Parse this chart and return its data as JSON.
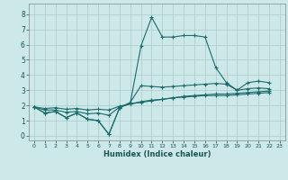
{
  "xlabel": "Humidex (Indice chaleur)",
  "xlim": [
    -0.5,
    23.5
  ],
  "ylim": [
    -0.3,
    8.7
  ],
  "xticks": [
    0,
    1,
    2,
    3,
    4,
    5,
    6,
    7,
    8,
    9,
    10,
    11,
    12,
    13,
    14,
    15,
    16,
    17,
    18,
    19,
    20,
    21,
    22,
    23
  ],
  "yticks": [
    0,
    1,
    2,
    3,
    4,
    5,
    6,
    7,
    8
  ],
  "background_color": "#cce8e8",
  "grid_color": "#aacccc",
  "line_color": "#1a6b6b",
  "series": [
    [
      1.9,
      1.5,
      1.6,
      1.2,
      1.5,
      1.1,
      1.0,
      0.1,
      1.85,
      2.15,
      5.9,
      7.8,
      6.5,
      6.5,
      6.6,
      6.6,
      6.5,
      4.5,
      3.5,
      3.0,
      3.5,
      3.6,
      3.5
    ],
    [
      1.9,
      1.5,
      1.6,
      1.2,
      1.5,
      1.1,
      1.0,
      0.1,
      1.85,
      2.2,
      3.3,
      3.25,
      3.2,
      3.25,
      3.3,
      3.35,
      3.4,
      3.45,
      3.4,
      3.0,
      3.1,
      3.15,
      3.1
    ],
    [
      1.9,
      1.7,
      1.7,
      1.55,
      1.6,
      1.45,
      1.5,
      1.35,
      1.9,
      2.1,
      2.25,
      2.35,
      2.4,
      2.5,
      2.55,
      2.6,
      2.65,
      2.65,
      2.65,
      2.7,
      2.75,
      2.8,
      2.85
    ],
    [
      1.9,
      1.8,
      1.85,
      1.75,
      1.8,
      1.7,
      1.75,
      1.7,
      1.95,
      2.1,
      2.2,
      2.3,
      2.4,
      2.5,
      2.6,
      2.65,
      2.7,
      2.75,
      2.75,
      2.8,
      2.85,
      2.9,
      2.95
    ]
  ],
  "x_values": [
    0,
    1,
    2,
    3,
    4,
    5,
    6,
    7,
    8,
    9,
    10,
    11,
    12,
    13,
    14,
    15,
    16,
    17,
    18,
    19,
    20,
    21,
    22
  ]
}
